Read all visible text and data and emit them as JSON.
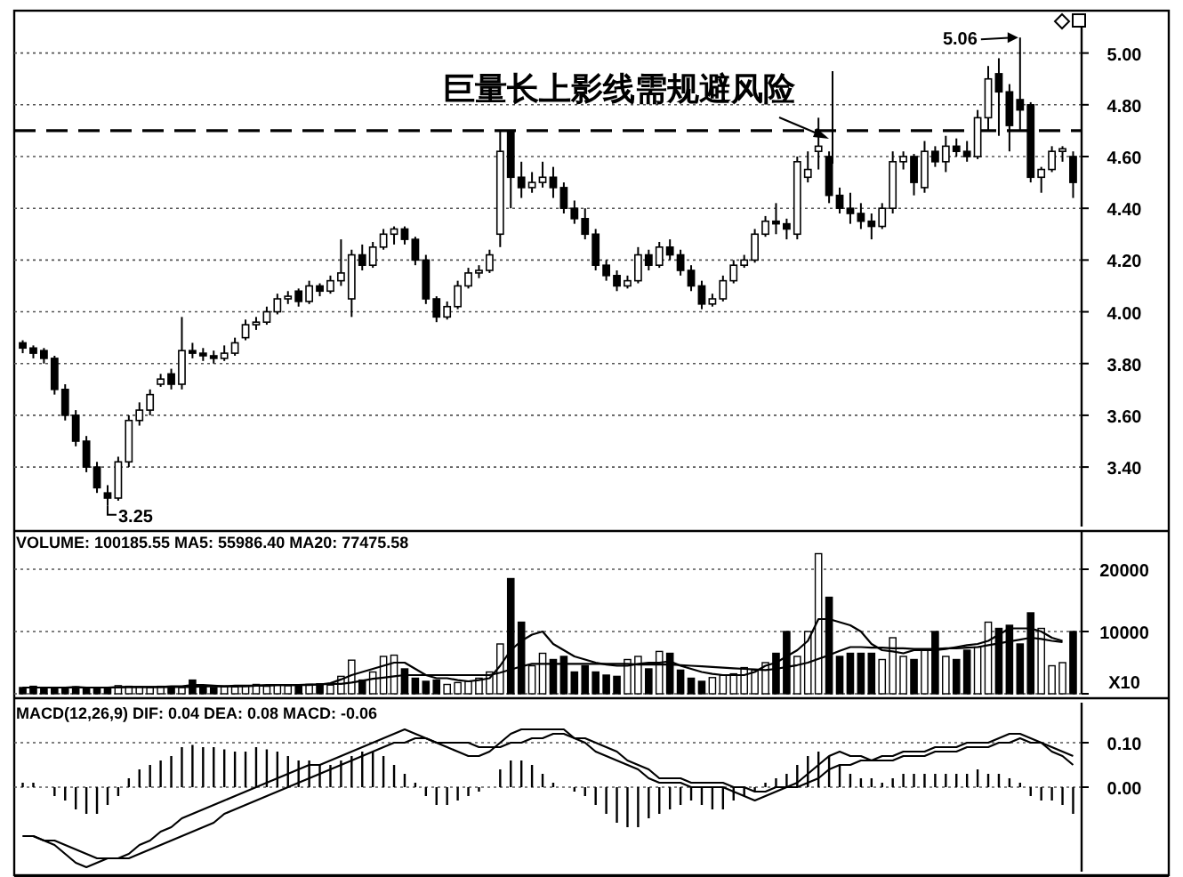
{
  "chart_data": [
    {
      "type": "candlestick",
      "ylim": [
        3.17,
        5.15
      ],
      "tick_labels": "y",
      "grid": "y",
      "yticks": [
        {
          "value": 3.4,
          "label": "3.40"
        },
        {
          "value": 3.6,
          "label": "3.60"
        },
        {
          "value": 3.8,
          "label": "3.80"
        },
        {
          "value": 4.0,
          "label": "4.00"
        },
        {
          "value": 4.2,
          "label": "4.20"
        },
        {
          "value": 4.4,
          "label": "4.40"
        },
        {
          "value": 4.6,
          "label": "4.60"
        },
        {
          "value": 4.8,
          "label": "4.80"
        },
        {
          "value": 5.0,
          "label": "5.00"
        }
      ],
      "categories": [
        null,
        null,
        null,
        null,
        null,
        null,
        null,
        null,
        null,
        null,
        null,
        null,
        null,
        null,
        null,
        null,
        null,
        null,
        null,
        null,
        null,
        null,
        null,
        null,
        null,
        null,
        null,
        null,
        null,
        null,
        null,
        null,
        null,
        null,
        null,
        null,
        null,
        null,
        null,
        null,
        null,
        null,
        null,
        null,
        null,
        null,
        null,
        null,
        null,
        null,
        null,
        null,
        null,
        null,
        null,
        null,
        null,
        null,
        null,
        null,
        null,
        null,
        null,
        null,
        null,
        null,
        null,
        null,
        null,
        null,
        null,
        null,
        null,
        null,
        null,
        null,
        null,
        null,
        null,
        null,
        null,
        null,
        null,
        null,
        null,
        null,
        null,
        null,
        null,
        null,
        null,
        null,
        null,
        null,
        null,
        null,
        null,
        null,
        null,
        null
      ],
      "ohlc": [
        [
          3.88,
          3.89,
          3.84,
          3.86
        ],
        [
          3.86,
          3.87,
          3.82,
          3.84
        ],
        [
          3.85,
          3.86,
          3.8,
          3.82
        ],
        [
          3.82,
          3.83,
          3.68,
          3.7
        ],
        [
          3.7,
          3.72,
          3.58,
          3.6
        ],
        [
          3.6,
          3.62,
          3.48,
          3.5
        ],
        [
          3.5,
          3.52,
          3.38,
          3.4
        ],
        [
          3.4,
          3.42,
          3.3,
          3.32
        ],
        [
          3.3,
          3.33,
          3.25,
          3.28
        ],
        [
          3.28,
          3.44,
          3.27,
          3.42
        ],
        [
          3.42,
          3.6,
          3.4,
          3.58
        ],
        [
          3.58,
          3.65,
          3.56,
          3.62
        ],
        [
          3.62,
          3.7,
          3.6,
          3.68
        ],
        [
          3.72,
          3.76,
          3.71,
          3.74
        ],
        [
          3.76,
          3.78,
          3.7,
          3.72
        ],
        [
          3.72,
          3.98,
          3.7,
          3.85
        ],
        [
          3.85,
          3.88,
          3.82,
          3.84
        ],
        [
          3.84,
          3.86,
          3.81,
          3.83
        ],
        [
          3.83,
          3.85,
          3.8,
          3.82
        ],
        [
          3.82,
          3.87,
          3.81,
          3.84
        ],
        [
          3.84,
          3.9,
          3.83,
          3.88
        ],
        [
          3.9,
          3.97,
          3.89,
          3.95
        ],
        [
          3.95,
          3.98,
          3.93,
          3.96
        ],
        [
          3.96,
          4.02,
          3.95,
          4.0
        ],
        [
          4.0,
          4.07,
          3.99,
          4.05
        ],
        [
          4.05,
          4.08,
          4.03,
          4.06
        ],
        [
          4.08,
          4.09,
          4.02,
          4.04
        ],
        [
          4.04,
          4.12,
          4.03,
          4.1
        ],
        [
          4.1,
          4.11,
          4.06,
          4.08
        ],
        [
          4.08,
          4.14,
          4.07,
          4.12
        ],
        [
          4.12,
          4.28,
          4.1,
          4.15
        ],
        [
          4.05,
          4.24,
          3.98,
          4.22
        ],
        [
          4.22,
          4.26,
          4.16,
          4.18
        ],
        [
          4.18,
          4.27,
          4.17,
          4.25
        ],
        [
          4.25,
          4.32,
          4.24,
          4.3
        ],
        [
          4.3,
          4.33,
          4.26,
          4.32
        ],
        [
          4.32,
          4.33,
          4.26,
          4.28
        ],
        [
          4.28,
          4.29,
          4.18,
          4.2
        ],
        [
          4.2,
          4.22,
          4.03,
          4.05
        ],
        [
          4.05,
          4.06,
          3.96,
          3.98
        ],
        [
          3.98,
          4.04,
          3.97,
          4.02
        ],
        [
          4.02,
          4.12,
          4.01,
          4.1
        ],
        [
          4.1,
          4.17,
          4.09,
          4.15
        ],
        [
          4.15,
          4.18,
          4.13,
          4.16
        ],
        [
          4.16,
          4.24,
          4.15,
          4.22
        ],
        [
          4.3,
          4.7,
          4.25,
          4.62
        ],
        [
          4.7,
          4.7,
          4.4,
          4.52
        ],
        [
          4.52,
          4.58,
          4.44,
          4.48
        ],
        [
          4.48,
          4.54,
          4.46,
          4.5
        ],
        [
          4.5,
          4.58,
          4.48,
          4.52
        ],
        [
          4.52,
          4.56,
          4.44,
          4.48
        ],
        [
          4.48,
          4.5,
          4.38,
          4.4
        ],
        [
          4.4,
          4.43,
          4.34,
          4.36
        ],
        [
          4.36,
          4.4,
          4.28,
          4.3
        ],
        [
          4.3,
          4.32,
          4.16,
          4.18
        ],
        [
          4.18,
          4.2,
          4.12,
          4.14
        ],
        [
          4.14,
          4.16,
          4.08,
          4.1
        ],
        [
          4.1,
          4.14,
          4.09,
          4.12
        ],
        [
          4.12,
          4.25,
          4.11,
          4.22
        ],
        [
          4.22,
          4.24,
          4.16,
          4.18
        ],
        [
          4.18,
          4.27,
          4.17,
          4.25
        ],
        [
          4.25,
          4.28,
          4.2,
          4.22
        ],
        [
          4.22,
          4.24,
          4.14,
          4.16
        ],
        [
          4.16,
          4.18,
          4.08,
          4.1
        ],
        [
          4.1,
          4.12,
          4.01,
          4.03
        ],
        [
          4.03,
          4.07,
          4.02,
          4.05
        ],
        [
          4.05,
          4.14,
          4.04,
          4.12
        ],
        [
          4.12,
          4.2,
          4.11,
          4.18
        ],
        [
          4.18,
          4.22,
          4.17,
          4.2
        ],
        [
          4.2,
          4.32,
          4.19,
          4.3
        ],
        [
          4.3,
          4.37,
          4.29,
          4.35
        ],
        [
          4.35,
          4.42,
          4.3,
          4.34
        ],
        [
          4.34,
          4.36,
          4.28,
          4.32
        ],
        [
          4.3,
          4.6,
          4.28,
          4.58
        ],
        [
          4.52,
          4.62,
          4.5,
          4.55
        ],
        [
          4.62,
          4.75,
          4.55,
          4.64
        ],
        [
          4.6,
          4.62,
          4.42,
          4.45
        ],
        [
          4.45,
          4.48,
          4.38,
          4.4
        ],
        [
          4.4,
          4.46,
          4.34,
          4.38
        ],
        [
          4.38,
          4.42,
          4.32,
          4.35
        ],
        [
          4.35,
          4.38,
          4.28,
          4.33
        ],
        [
          4.33,
          4.42,
          4.32,
          4.4
        ],
        [
          4.4,
          4.62,
          4.38,
          4.58
        ],
        [
          4.58,
          4.62,
          4.55,
          4.6
        ],
        [
          4.6,
          4.61,
          4.45,
          4.5
        ],
        [
          4.48,
          4.66,
          4.46,
          4.62
        ],
        [
          4.62,
          4.64,
          4.56,
          4.58
        ],
        [
          4.58,
          4.68,
          4.54,
          4.64
        ],
        [
          4.64,
          4.67,
          4.6,
          4.62
        ],
        [
          4.62,
          4.66,
          4.58,
          4.6
        ],
        [
          4.6,
          4.78,
          4.59,
          4.75
        ],
        [
          4.75,
          4.95,
          4.7,
          4.9
        ],
        [
          4.92,
          4.98,
          4.68,
          4.85
        ],
        [
          4.85,
          4.88,
          4.62,
          4.72
        ],
        [
          4.82,
          5.06,
          4.7,
          4.78
        ],
        [
          4.8,
          4.81,
          4.5,
          4.52
        ],
        [
          4.52,
          4.56,
          4.46,
          4.55
        ],
        [
          4.55,
          4.64,
          4.54,
          4.62
        ],
        [
          4.62,
          4.64,
          4.58,
          4.63
        ],
        [
          4.6,
          4.62,
          4.44,
          4.5
        ]
      ],
      "ref_lines": [
        {
          "axis": "y",
          "value": 4.7,
          "line_style": "dashed",
          "color": "#000000"
        }
      ],
      "annotations": [
        "巨量长上影线需规避风险",
        "3.25",
        "5.06"
      ]
    },
    {
      "type": "bar",
      "title": "VOLUME: 100185.55 MA5: 55986.40 MA20: 77475.58",
      "ylim": [
        0,
        26000
      ],
      "tick_labels": "y",
      "grid": "y",
      "yticks": [
        {
          "value": 0,
          "label": "X10"
        },
        10000,
        20000
      ],
      "categories": [
        null,
        null,
        null,
        null,
        null,
        null,
        null,
        null,
        null,
        null,
        null,
        null,
        null,
        null,
        null,
        null,
        null,
        null,
        null,
        null,
        null,
        null,
        null,
        null,
        null,
        null,
        null,
        null,
        null,
        null,
        null,
        null,
        null,
        null,
        null,
        null,
        null,
        null,
        null,
        null,
        null,
        null,
        null,
        null,
        null,
        null,
        null,
        null,
        null,
        null,
        null,
        null,
        null,
        null,
        null,
        null,
        null,
        null,
        null,
        null,
        null,
        null,
        null,
        null,
        null,
        null,
        null,
        null,
        null,
        null,
        null,
        null,
        null,
        null,
        null,
        null,
        null,
        null,
        null,
        null,
        null,
        null,
        null,
        null,
        null,
        null,
        null,
        null,
        null,
        null,
        null,
        null,
        null,
        null,
        null,
        null,
        null,
        null,
        null,
        null
      ],
      "series": [
        {
          "values": [
            1000,
            1200,
            900,
            800,
            1000,
            1100,
            900,
            800,
            1000,
            1300,
            1200,
            1100,
            1000,
            1200,
            900,
            1000,
            2200,
            1300,
            1000,
            1200,
            1100,
            1300,
            1500,
            1200,
            1400,
            1300,
            1200,
            1500,
            1600,
            1400,
            2800,
            5400,
            2200,
            3500,
            6000,
            6200,
            4000,
            2500,
            2000,
            2200,
            1500,
            1800,
            2000,
            2500,
            3500,
            8000,
            18500,
            11500,
            4500,
            6500,
            5500,
            6000,
            3500,
            4500,
            3500,
            3000,
            2800,
            5500,
            6000,
            4000,
            6800,
            6500,
            3800,
            2500,
            2000,
            2600,
            3000,
            3200,
            4200,
            3800,
            5000,
            6500,
            10000,
            6000,
            10000,
            22500,
            15500,
            6000,
            6500,
            6500,
            6500,
            5500,
            9000,
            6000,
            5500,
            7000,
            10000,
            6000,
            5500,
            7000,
            7500,
            11500,
            10500,
            11000,
            8000,
            13000,
            10500,
            4500,
            5000,
            10000
          ],
          "colors": [
            "#000000",
            "#000000",
            "#000000",
            "#000000",
            "#000000",
            "#000000",
            "#000000",
            "#000000",
            "#000000",
            "#ffffff",
            "#ffffff",
            "#ffffff",
            "#ffffff",
            "#ffffff",
            "#000000",
            "#ffffff",
            "#000000",
            "#000000",
            "#000000",
            "#ffffff",
            "#ffffff",
            "#ffffff",
            "#ffffff",
            "#ffffff",
            "#ffffff",
            "#ffffff",
            "#000000",
            "#ffffff",
            "#000000",
            "#ffffff",
            "#ffffff",
            "#ffffff",
            "#000000",
            "#ffffff",
            "#ffffff",
            "#ffffff",
            "#000000",
            "#000000",
            "#000000",
            "#000000",
            "#ffffff",
            "#ffffff",
            "#ffffff",
            "#ffffff",
            "#ffffff",
            "#ffffff",
            "#000000",
            "#000000",
            "#ffffff",
            "#ffffff",
            "#000000",
            "#000000",
            "#000000",
            "#000000",
            "#000000",
            "#000000",
            "#000000",
            "#ffffff",
            "#ffffff",
            "#000000",
            "#ffffff",
            "#000000",
            "#000000",
            "#000000",
            "#000000",
            "#ffffff",
            "#ffffff",
            "#ffffff",
            "#ffffff",
            "#ffffff",
            "#ffffff",
            "#000000",
            "#000000",
            "#ffffff",
            "#ffffff",
            "#ffffff",
            "#000000",
            "#000000",
            "#000000",
            "#000000",
            "#000000",
            "#ffffff",
            "#ffffff",
            "#ffffff",
            "#000000",
            "#ffffff",
            "#000000",
            "#ffffff",
            "#000000",
            "#000000",
            "#ffffff",
            "#ffffff",
            "#000000",
            "#000000",
            "#000000",
            "#000000",
            "#ffffff",
            "#ffffff",
            "#ffffff",
            "#000000"
          ]
        },
        {
          "type": "line",
          "color": "#000000",
          "values": [
            1000,
            1000,
            1000,
            1000,
            1000,
            1100,
            1000,
            1000,
            1000,
            1100,
            1100,
            1100,
            1100,
            1100,
            1200,
            1200,
            1400,
            1400,
            1300,
            1200,
            1300,
            1300,
            1300,
            1400,
            1400,
            1400,
            1400,
            1400,
            1500,
            1700,
            2300,
            3000,
            3500,
            4000,
            4500,
            5000,
            5000,
            4000,
            3000,
            2500,
            2500,
            2200,
            2000,
            2200,
            2500,
            4500,
            7000,
            8500,
            9500,
            10000,
            8000,
            7000,
            6000,
            5500,
            5000,
            4700,
            4500,
            4500,
            4800,
            5000,
            5000,
            5200,
            4500,
            4000,
            3500,
            3200,
            3000,
            3000,
            3000,
            3500,
            4500,
            5000,
            6000,
            7000,
            8500,
            12000,
            12000,
            11500,
            11000,
            10000,
            8000,
            7000,
            6800,
            6500,
            7000,
            7000,
            7000,
            7200,
            7500,
            7800,
            8000,
            8500,
            9500,
            10500,
            10500,
            10500,
            10000,
            9000,
            8500,
            null
          ]
        },
        {
          "type": "line",
          "color": "#000000",
          "values": [
            1000,
            1000,
            1000,
            1000,
            1000,
            1000,
            1000,
            1000,
            1000,
            1000,
            1100,
            1100,
            1100,
            1100,
            1100,
            1100,
            1100,
            1200,
            1200,
            1200,
            1200,
            1200,
            1300,
            1300,
            1400,
            1400,
            1400,
            1500,
            1500,
            1600,
            1600,
            1800,
            2100,
            2400,
            2600,
            2800,
            3000,
            3000,
            3000,
            3000,
            3000,
            3000,
            3000,
            3000,
            3000,
            3400,
            3900,
            4400,
            4800,
            4800,
            4800,
            4800,
            4800,
            4800,
            4800,
            4800,
            4800,
            4800,
            4700,
            4700,
            4700,
            4700,
            4600,
            4500,
            4400,
            4300,
            4200,
            4100,
            4000,
            3900,
            3800,
            4000,
            4300,
            4600,
            5000,
            5600,
            6200,
            6900,
            7500,
            7500,
            7400,
            7400,
            7300,
            7300,
            7200,
            7200,
            7200,
            7300,
            7300,
            7400,
            7500,
            7800,
            8100,
            8400,
            8700,
            9000,
            8800,
            8500,
            8300,
            null
          ]
        }
      ]
    },
    {
      "type": "bar",
      "title": "MACD(12,26,9) DIF: 0.04 DEA: 0.08 MACD: -0.06",
      "ylim": [
        -0.19,
        0.19
      ],
      "tick_labels": "y",
      "grid": "y",
      "yticks": [
        {
          "value": 0,
          "label": "0.00"
        },
        {
          "value": 0.1,
          "label": "0.10"
        }
      ],
      "categories": [
        null,
        null,
        null,
        null,
        null,
        null,
        null,
        null,
        null,
        null,
        null,
        null,
        null,
        null,
        null,
        null,
        null,
        null,
        null,
        null,
        null,
        null,
        null,
        null,
        null,
        null,
        null,
        null,
        null,
        null,
        null,
        null,
        null,
        null,
        null,
        null,
        null,
        null,
        null,
        null,
        null,
        null,
        null,
        null,
        null,
        null,
        null,
        null,
        null,
        null,
        null,
        null,
        null,
        null,
        null,
        null,
        null,
        null,
        null,
        null,
        null,
        null,
        null,
        null,
        null,
        null,
        null,
        null,
        null,
        null,
        null,
        null,
        null,
        null,
        null,
        null,
        null,
        null,
        null,
        null,
        null,
        null,
        null,
        null,
        null,
        null,
        null,
        null,
        null,
        null,
        null,
        null,
        null,
        null,
        null,
        null,
        null,
        null,
        null,
        null
      ],
      "series": [
        {
          "color": "#000000",
          "values": [
            0.01,
            0.01,
            0.0,
            -0.02,
            -0.03,
            -0.05,
            -0.06,
            -0.06,
            -0.04,
            -0.02,
            0.02,
            0.04,
            0.05,
            0.06,
            0.07,
            0.09,
            0.095,
            0.09,
            0.09,
            0.085,
            0.08,
            0.08,
            0.09,
            0.085,
            0.08,
            0.07,
            0.06,
            0.06,
            0.05,
            0.05,
            0.06,
            0.07,
            0.08,
            0.08,
            0.07,
            0.05,
            0.03,
            0.01,
            -0.02,
            -0.04,
            -0.04,
            -0.03,
            -0.02,
            -0.01,
            0.0,
            0.04,
            0.06,
            0.06,
            0.05,
            0.03,
            0.01,
            0.0,
            -0.01,
            -0.02,
            -0.04,
            -0.06,
            -0.08,
            -0.09,
            -0.09,
            -0.07,
            -0.06,
            -0.05,
            -0.04,
            -0.03,
            -0.04,
            -0.05,
            -0.05,
            -0.03,
            -0.02,
            -0.01,
            0.01,
            0.02,
            0.03,
            0.05,
            0.07,
            0.08,
            0.07,
            0.05,
            0.03,
            0.02,
            0.02,
            0.01,
            0.02,
            0.03,
            0.03,
            0.03,
            0.03,
            0.03,
            0.03,
            0.03,
            0.04,
            0.03,
            0.03,
            0.02,
            0.01,
            -0.02,
            -0.03,
            -0.03,
            -0.04,
            -0.06
          ]
        },
        {
          "type": "line",
          "color": "#000000",
          "values": [
            -0.11,
            -0.11,
            -0.12,
            -0.13,
            -0.15,
            -0.17,
            -0.18,
            -0.17,
            -0.16,
            -0.16,
            -0.15,
            -0.13,
            -0.12,
            -0.1,
            -0.09,
            -0.07,
            -0.06,
            -0.05,
            -0.04,
            -0.03,
            -0.02,
            -0.01,
            0.0,
            0.01,
            0.02,
            0.03,
            0.04,
            0.05,
            0.05,
            0.06,
            0.07,
            0.08,
            0.09,
            0.1,
            0.11,
            0.12,
            0.13,
            0.12,
            0.11,
            0.1,
            0.09,
            0.08,
            0.07,
            0.07,
            0.08,
            0.1,
            0.12,
            0.13,
            0.13,
            0.13,
            0.13,
            0.13,
            0.11,
            0.1,
            0.08,
            0.07,
            0.06,
            0.05,
            0.04,
            0.02,
            0.01,
            0.01,
            0.01,
            0.0,
            0.0,
            0.0,
            0.0,
            -0.01,
            -0.02,
            -0.03,
            -0.02,
            -0.01,
            0.0,
            0.01,
            0.03,
            0.05,
            0.07,
            0.08,
            0.07,
            0.07,
            0.06,
            0.07,
            0.07,
            0.08,
            0.08,
            0.08,
            0.09,
            0.09,
            0.09,
            0.1,
            0.1,
            0.1,
            0.11,
            0.12,
            0.12,
            0.11,
            0.1,
            0.08,
            0.07,
            0.05
          ]
        },
        {
          "type": "line",
          "color": "#000000",
          "values": [
            -0.11,
            -0.11,
            -0.12,
            -0.12,
            -0.13,
            -0.14,
            -0.15,
            -0.16,
            -0.16,
            -0.16,
            -0.16,
            -0.15,
            -0.14,
            -0.13,
            -0.12,
            -0.11,
            -0.1,
            -0.09,
            -0.08,
            -0.06,
            -0.05,
            -0.04,
            -0.03,
            -0.02,
            -0.01,
            0.0,
            0.01,
            0.02,
            0.03,
            0.04,
            0.05,
            0.06,
            0.07,
            0.08,
            0.09,
            0.1,
            0.1,
            0.11,
            0.11,
            0.1,
            0.1,
            0.1,
            0.1,
            0.09,
            0.09,
            0.09,
            0.1,
            0.1,
            0.11,
            0.11,
            0.12,
            0.12,
            0.11,
            0.11,
            0.1,
            0.09,
            0.08,
            0.06,
            0.05,
            0.04,
            0.02,
            0.02,
            0.02,
            0.01,
            0.01,
            0.01,
            0.01,
            0.0,
            0.0,
            -0.01,
            -0.01,
            0.0,
            0.0,
            0.0,
            0.01,
            0.02,
            0.04,
            0.05,
            0.05,
            0.06,
            0.06,
            0.06,
            0.06,
            0.07,
            0.07,
            0.07,
            0.08,
            0.08,
            0.08,
            0.09,
            0.09,
            0.09,
            0.1,
            0.1,
            0.11,
            0.1,
            0.1,
            0.09,
            0.08,
            0.07
          ]
        }
      ]
    }
  ]
}
